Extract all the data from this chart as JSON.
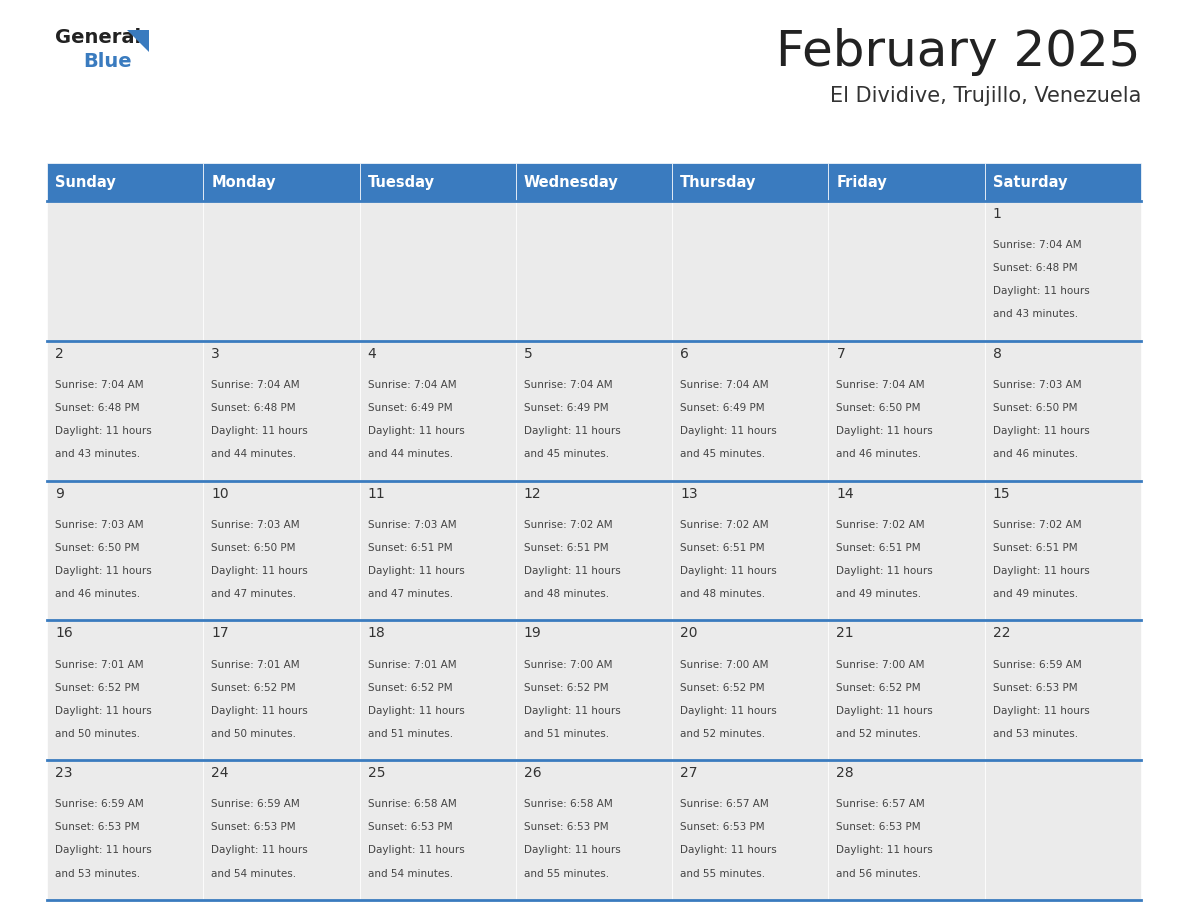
{
  "title": "February 2025",
  "subtitle": "El Dividive, Trujillo, Venezuela",
  "header_bg": "#3a7bbf",
  "header_text": "#ffffff",
  "cell_bg": "#ebebeb",
  "border_color": "#3a7bbf",
  "text_color": "#333333",
  "day_headers": [
    "Sunday",
    "Monday",
    "Tuesday",
    "Wednesday",
    "Thursday",
    "Friday",
    "Saturday"
  ],
  "days": [
    {
      "day": 1,
      "col": 6,
      "row": 0,
      "sunrise": "7:04 AM",
      "sunset": "6:48 PM",
      "daylight": "11 hours and 43 minutes"
    },
    {
      "day": 2,
      "col": 0,
      "row": 1,
      "sunrise": "7:04 AM",
      "sunset": "6:48 PM",
      "daylight": "11 hours and 43 minutes"
    },
    {
      "day": 3,
      "col": 1,
      "row": 1,
      "sunrise": "7:04 AM",
      "sunset": "6:48 PM",
      "daylight": "11 hours and 44 minutes"
    },
    {
      "day": 4,
      "col": 2,
      "row": 1,
      "sunrise": "7:04 AM",
      "sunset": "6:49 PM",
      "daylight": "11 hours and 44 minutes"
    },
    {
      "day": 5,
      "col": 3,
      "row": 1,
      "sunrise": "7:04 AM",
      "sunset": "6:49 PM",
      "daylight": "11 hours and 45 minutes"
    },
    {
      "day": 6,
      "col": 4,
      "row": 1,
      "sunrise": "7:04 AM",
      "sunset": "6:49 PM",
      "daylight": "11 hours and 45 minutes"
    },
    {
      "day": 7,
      "col": 5,
      "row": 1,
      "sunrise": "7:04 AM",
      "sunset": "6:50 PM",
      "daylight": "11 hours and 46 minutes"
    },
    {
      "day": 8,
      "col": 6,
      "row": 1,
      "sunrise": "7:03 AM",
      "sunset": "6:50 PM",
      "daylight": "11 hours and 46 minutes"
    },
    {
      "day": 9,
      "col": 0,
      "row": 2,
      "sunrise": "7:03 AM",
      "sunset": "6:50 PM",
      "daylight": "11 hours and 46 minutes"
    },
    {
      "day": 10,
      "col": 1,
      "row": 2,
      "sunrise": "7:03 AM",
      "sunset": "6:50 PM",
      "daylight": "11 hours and 47 minutes"
    },
    {
      "day": 11,
      "col": 2,
      "row": 2,
      "sunrise": "7:03 AM",
      "sunset": "6:51 PM",
      "daylight": "11 hours and 47 minutes"
    },
    {
      "day": 12,
      "col": 3,
      "row": 2,
      "sunrise": "7:02 AM",
      "sunset": "6:51 PM",
      "daylight": "11 hours and 48 minutes"
    },
    {
      "day": 13,
      "col": 4,
      "row": 2,
      "sunrise": "7:02 AM",
      "sunset": "6:51 PM",
      "daylight": "11 hours and 48 minutes"
    },
    {
      "day": 14,
      "col": 5,
      "row": 2,
      "sunrise": "7:02 AM",
      "sunset": "6:51 PM",
      "daylight": "11 hours and 49 minutes"
    },
    {
      "day": 15,
      "col": 6,
      "row": 2,
      "sunrise": "7:02 AM",
      "sunset": "6:51 PM",
      "daylight": "11 hours and 49 minutes"
    },
    {
      "day": 16,
      "col": 0,
      "row": 3,
      "sunrise": "7:01 AM",
      "sunset": "6:52 PM",
      "daylight": "11 hours and 50 minutes"
    },
    {
      "day": 17,
      "col": 1,
      "row": 3,
      "sunrise": "7:01 AM",
      "sunset": "6:52 PM",
      "daylight": "11 hours and 50 minutes"
    },
    {
      "day": 18,
      "col": 2,
      "row": 3,
      "sunrise": "7:01 AM",
      "sunset": "6:52 PM",
      "daylight": "11 hours and 51 minutes"
    },
    {
      "day": 19,
      "col": 3,
      "row": 3,
      "sunrise": "7:00 AM",
      "sunset": "6:52 PM",
      "daylight": "11 hours and 51 minutes"
    },
    {
      "day": 20,
      "col": 4,
      "row": 3,
      "sunrise": "7:00 AM",
      "sunset": "6:52 PM",
      "daylight": "11 hours and 52 minutes"
    },
    {
      "day": 21,
      "col": 5,
      "row": 3,
      "sunrise": "7:00 AM",
      "sunset": "6:52 PM",
      "daylight": "11 hours and 52 minutes"
    },
    {
      "day": 22,
      "col": 6,
      "row": 3,
      "sunrise": "6:59 AM",
      "sunset": "6:53 PM",
      "daylight": "11 hours and 53 minutes"
    },
    {
      "day": 23,
      "col": 0,
      "row": 4,
      "sunrise": "6:59 AM",
      "sunset": "6:53 PM",
      "daylight": "11 hours and 53 minutes"
    },
    {
      "day": 24,
      "col": 1,
      "row": 4,
      "sunrise": "6:59 AM",
      "sunset": "6:53 PM",
      "daylight": "11 hours and 54 minutes"
    },
    {
      "day": 25,
      "col": 2,
      "row": 4,
      "sunrise": "6:58 AM",
      "sunset": "6:53 PM",
      "daylight": "11 hours and 54 minutes"
    },
    {
      "day": 26,
      "col": 3,
      "row": 4,
      "sunrise": "6:58 AM",
      "sunset": "6:53 PM",
      "daylight": "11 hours and 55 minutes"
    },
    {
      "day": 27,
      "col": 4,
      "row": 4,
      "sunrise": "6:57 AM",
      "sunset": "6:53 PM",
      "daylight": "11 hours and 55 minutes"
    },
    {
      "day": 28,
      "col": 5,
      "row": 4,
      "sunrise": "6:57 AM",
      "sunset": "6:53 PM",
      "daylight": "11 hours and 56 minutes"
    }
  ],
  "num_rows": 5,
  "logo_triangle_color": "#3a7bbf"
}
